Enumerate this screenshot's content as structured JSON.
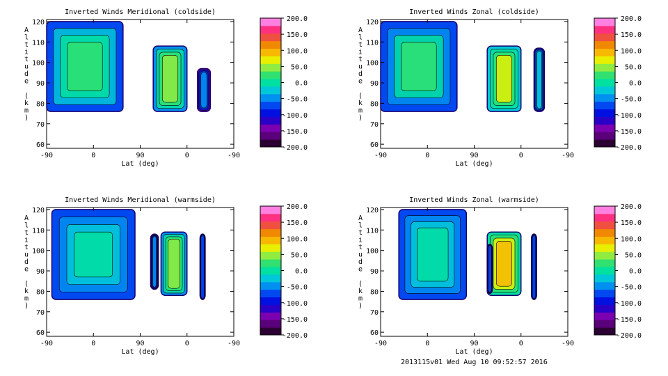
{
  "footer_text": "2013115v01 Wed Aug 10 09:52:57 2016",
  "chart_data": [
    {
      "type": "heatmap",
      "title": "Inverted Winds Meridional (coldside)",
      "xlabel": "Lat (deg)",
      "ylabel": "Altitude (km)",
      "x_ticks": [
        "-90",
        "0",
        "90",
        "0",
        "-90"
      ],
      "y_ticks": [
        60,
        70,
        80,
        90,
        100,
        110,
        120
      ],
      "ylim": [
        58,
        121
      ],
      "colorbar": {
        "min": -200.0,
        "max": 200.0,
        "labels": [
          "200.0",
          "150.0",
          "100.0",
          "50.0",
          "0.0",
          "-50.0",
          "-100.0",
          "-150.0",
          "-200.0"
        ]
      },
      "regions": [
        {
          "x_range": [
            -90,
            57
          ],
          "y_range": [
            76,
            120
          ],
          "mean_value": -60
        },
        {
          "x_range": [
            -180,
            -115
          ],
          "y_range": [
            76,
            108
          ],
          "mean_value": -40
        },
        {
          "x_range": [
            -225,
            -200
          ],
          "y_range": [
            76,
            97
          ],
          "mean_value": -130
        }
      ]
    },
    {
      "type": "heatmap",
      "title": "Inverted Winds Zonal (coldside)",
      "xlabel": "Lat (deg)",
      "ylabel": "Altitude (km)",
      "x_ticks": [
        "-90",
        "0",
        "90",
        "0",
        "-90"
      ],
      "y_ticks": [
        60,
        70,
        80,
        90,
        100,
        110,
        120
      ],
      "ylim": [
        58,
        121
      ],
      "colorbar": {
        "min": -200.0,
        "max": 200.0,
        "labels": [
          "200.0",
          "150.0",
          "100.0",
          "50.0",
          "0.0",
          "-50.0",
          "-100.0",
          "-150.0",
          "-200.0"
        ]
      },
      "regions": [
        {
          "x_range": [
            -90,
            57
          ],
          "y_range": [
            76,
            120
          ],
          "mean_value": -70
        },
        {
          "x_range": [
            -180,
            -115
          ],
          "y_range": [
            76,
            108
          ],
          "mean_value": -30
        },
        {
          "x_range": [
            -225,
            -205
          ],
          "y_range": [
            76,
            107
          ],
          "mean_value": -110
        }
      ]
    },
    {
      "type": "heatmap",
      "title": "Inverted Winds Meridional (warmside)",
      "xlabel": "Lat (deg)",
      "ylabel": "Altitude (km)",
      "x_ticks": [
        "-90",
        "0",
        "90",
        "0",
        "-90"
      ],
      "y_ticks": [
        60,
        70,
        80,
        90,
        100,
        110,
        120
      ],
      "ylim": [
        58,
        121
      ],
      "colorbar": {
        "min": -200.0,
        "max": 200.0,
        "labels": [
          "200.0",
          "150.0",
          "100.0",
          "50.0",
          "0.0",
          "-50.0",
          "-100.0",
          "-150.0",
          "-200.0"
        ]
      },
      "regions": [
        {
          "x_range": [
            -80,
            80
          ],
          "y_range": [
            76,
            120
          ],
          "mean_value": -80
        },
        {
          "x_range": [
            -180,
            -130
          ],
          "y_range": [
            78,
            109
          ],
          "mean_value": -40
        },
        {
          "x_range": [
            -215,
            -205
          ],
          "y_range": [
            76,
            108
          ],
          "mean_value": -120
        },
        {
          "x_range": [
            -125,
            -110
          ],
          "y_range": [
            81,
            108
          ],
          "mean_value": -140
        }
      ]
    },
    {
      "type": "heatmap",
      "title": "Inverted Winds Zonal (warmside)",
      "xlabel": "Lat (deg)",
      "ylabel": "Altitude (km)",
      "x_ticks": [
        "-90",
        "0",
        "90",
        "0",
        "-90"
      ],
      "y_ticks": [
        60,
        70,
        80,
        90,
        100,
        110,
        120
      ],
      "ylim": [
        58,
        121
      ],
      "colorbar": {
        "min": -200.0,
        "max": 200.0,
        "labels": [
          "200.0",
          "150.0",
          "100.0",
          "50.0",
          "0.0",
          "-50.0",
          "-100.0",
          "-150.0",
          "-200.0"
        ]
      },
      "regions": [
        {
          "x_range": [
            -55,
            75
          ],
          "y_range": [
            76,
            120
          ],
          "mean_value": -80
        },
        {
          "x_range": [
            -180,
            -115
          ],
          "y_range": [
            78,
            109
          ],
          "mean_value": 0
        },
        {
          "x_range": [
            -210,
            -200
          ],
          "y_range": [
            76,
            108
          ],
          "mean_value": -120
        },
        {
          "x_range": [
            -125,
            -115
          ],
          "y_range": [
            79,
            103
          ],
          "mean_value": -140
        }
      ]
    }
  ]
}
